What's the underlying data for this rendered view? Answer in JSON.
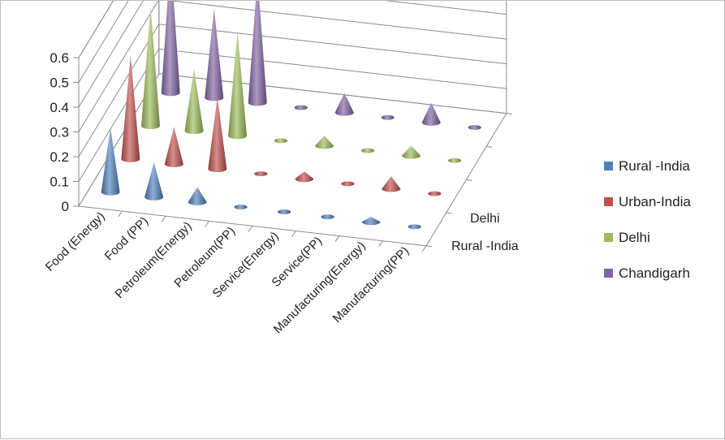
{
  "chart_data": {
    "type": "3d-cone-column",
    "categories": [
      "Food (Energy)",
      "Food (PP)",
      "Petroleum(Energy)",
      "Petroleum(PP)",
      "Service(Energy)",
      "Service(PP)",
      "Manufacturing(Energy)",
      "Manufacturing(PP)"
    ],
    "depth_axis_labels": [
      "Rural -India",
      "Delhi"
    ],
    "yticks": [
      "0",
      "0.1",
      "0.2",
      "0.3",
      "0.4",
      "0.5",
      "0.6"
    ],
    "ylim": [
      0,
      0.6
    ],
    "series": [
      {
        "name": "Rural -India",
        "color": "#4f81bd",
        "values": [
          0.26,
          0.14,
          0.06,
          0.0,
          0.0,
          0.0,
          0.02,
          0.0
        ]
      },
      {
        "name": "Urban-India",
        "color": "#c0504d",
        "values": [
          0.42,
          0.15,
          0.29,
          0.0,
          0.03,
          0.0,
          0.05,
          0.0
        ]
      },
      {
        "name": "Delhi",
        "color": "#9bbb59",
        "values": [
          0.48,
          0.25,
          0.42,
          0.0,
          0.04,
          0.0,
          0.04,
          0.0
        ]
      },
      {
        "name": "Chandigarh",
        "color": "#8064a2",
        "values": [
          0.55,
          0.36,
          0.51,
          0.0,
          0.08,
          0.0,
          0.08,
          0.0
        ]
      }
    ],
    "legend_position": "right",
    "grid": true
  }
}
